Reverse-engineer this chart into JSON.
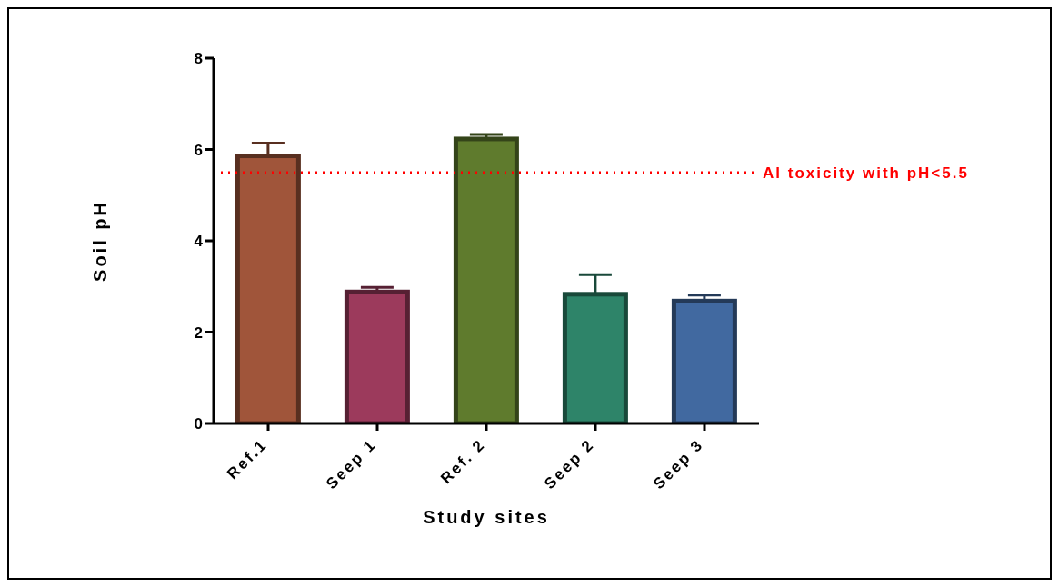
{
  "chart_data": {
    "type": "bar",
    "xlabel": "Study sites",
    "ylabel": "Soil pH",
    "categories": [
      "Ref.1",
      "Seep 1",
      "Ref. 2",
      "Seep 2",
      "Seep 3"
    ],
    "values": [
      5.86,
      2.88,
      6.23,
      2.83,
      2.68
    ],
    "errors": [
      0.28,
      0.1,
      0.1,
      0.43,
      0.13
    ],
    "colors": [
      "#a0553a",
      "#9c3a5c",
      "#5f7b2d",
      "#2e8469",
      "#4169a0"
    ],
    "ylim": [
      0,
      8
    ],
    "yticks": [
      0,
      2,
      4,
      6,
      8
    ],
    "grid": false,
    "legend": false,
    "ref_lines": [
      {
        "axis": "y",
        "value": 5.5,
        "label": "Al toxicity with pH<5.5",
        "color": "#ff0000",
        "line_style": "dotted"
      }
    ]
  }
}
